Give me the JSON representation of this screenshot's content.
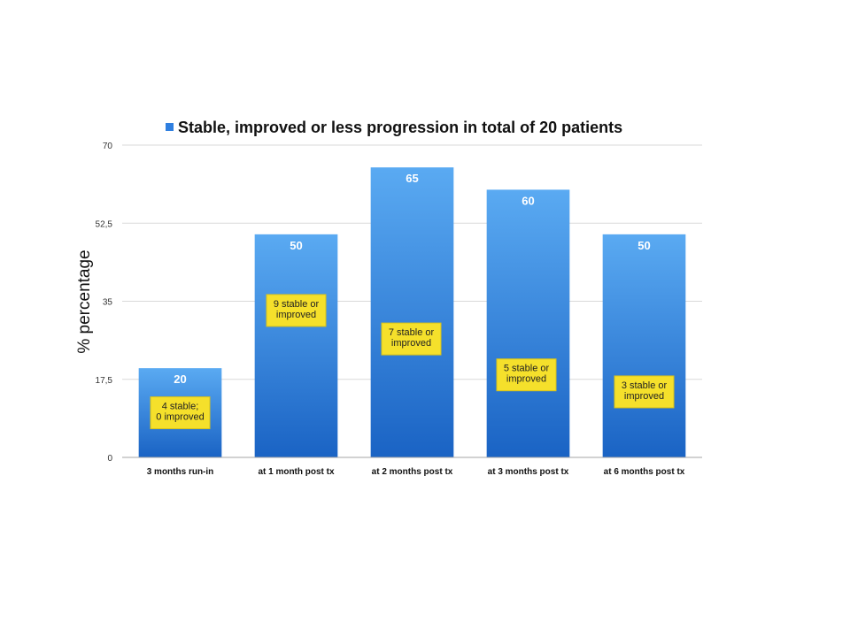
{
  "chart_data": {
    "type": "bar",
    "categories": [
      "3 months run-in",
      "at 1 month post tx",
      "at 2 months post tx",
      "at 3 months post tx",
      "at 6 months post tx"
    ],
    "series": [
      {
        "name": "Stable, improved or less progression in total of 20 patients",
        "values": [
          20,
          50,
          65,
          60,
          50
        ]
      }
    ],
    "data_labels": [
      "20",
      "50",
      "65",
      "60",
      "50"
    ],
    "annotations": [
      [
        "4 stable;",
        "0 improved"
      ],
      [
        "9 stable or",
        "improved"
      ],
      [
        "7 stable or",
        "improved"
      ],
      [
        "5 stable or",
        "improved"
      ],
      [
        "3 stable or",
        "improved"
      ]
    ],
    "ylabel": "% percentage",
    "xlabel": "",
    "ylim": [
      0,
      70
    ],
    "yticks": [
      "0",
      "17,5",
      "35",
      "52,5",
      "70"
    ],
    "ytick_values": [
      0,
      17.5,
      35,
      52.5,
      70
    ],
    "legend_position": "top",
    "grid": true,
    "colors": {
      "bar_top": "#5aaaf2",
      "bar_bottom": "#1a63c4",
      "note": "#f5e02b",
      "legend_swatch": "#2f7fe0"
    }
  }
}
